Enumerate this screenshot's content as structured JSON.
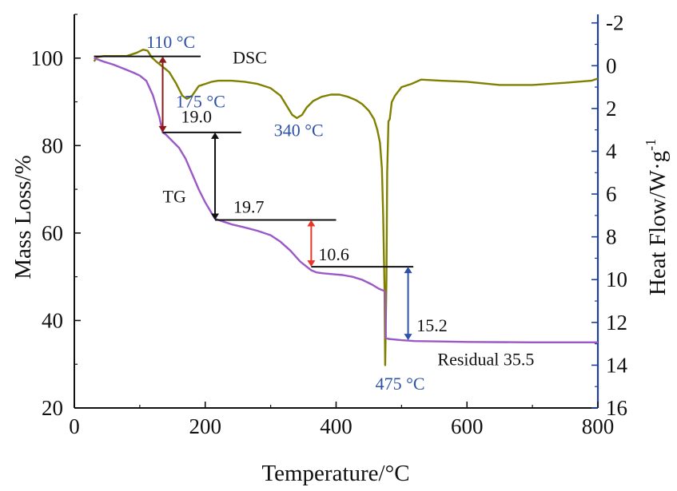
{
  "chart_data": {
    "type": "line",
    "xlabel": "Temperature/°C",
    "ylabel_left": "Mass Loss/%",
    "ylabel_right_main": "Heat Flow/W·g",
    "ylabel_right_sup": "-1",
    "xlim": [
      0,
      800
    ],
    "ylim_left": [
      20,
      110
    ],
    "ylim_right": [
      16,
      -2.4
    ],
    "x_ticks": [
      0,
      200,
      400,
      600,
      800
    ],
    "y_left_ticks": [
      20,
      40,
      60,
      80,
      100
    ],
    "y_right_ticks": [
      -2,
      0,
      2,
      4,
      6,
      8,
      10,
      12,
      14,
      16
    ],
    "colors": {
      "axis_right": "#1f3f9a",
      "dsc": "#808000",
      "tg": "#9b59c7",
      "annotation_blue": "#2e52a8",
      "arrow_dark_red": "#8b1a1a",
      "arrow_red": "#e8352a",
      "arrow_blue": "#2e52a8",
      "text": "#111111"
    },
    "series": [
      {
        "name": "DSC",
        "axis": "right",
        "x": [
          30,
          35,
          45,
          60,
          80,
          95,
          105,
          112,
          118,
          125,
          135,
          145,
          155,
          165,
          172,
          180,
          190,
          200,
          210,
          220,
          240,
          260,
          280,
          300,
          315,
          325,
          333,
          340,
          348,
          355,
          365,
          378,
          392,
          405,
          418,
          430,
          440,
          450,
          458,
          463,
          467,
          470,
          472,
          474,
          475,
          477,
          478,
          480,
          482,
          485,
          490,
          500,
          515,
          530,
          560,
          600,
          650,
          700,
          750,
          790,
          800
        ],
        "y": [
          -0.2,
          -0.4,
          -0.45,
          -0.45,
          -0.45,
          -0.6,
          -0.75,
          -0.7,
          -0.4,
          -0.2,
          0.05,
          0.3,
          0.8,
          1.4,
          1.55,
          1.4,
          0.95,
          0.85,
          0.75,
          0.7,
          0.7,
          0.75,
          0.85,
          1.05,
          1.4,
          1.9,
          2.3,
          2.45,
          2.3,
          1.95,
          1.65,
          1.45,
          1.35,
          1.35,
          1.45,
          1.6,
          1.8,
          2.1,
          2.5,
          3.0,
          3.6,
          4.8,
          7.0,
          10.5,
          14.0,
          10.0,
          5.0,
          2.6,
          2.5,
          1.7,
          1.4,
          1.0,
          0.85,
          0.65,
          0.7,
          0.75,
          0.9,
          0.9,
          0.8,
          0.7,
          0.6
        ]
      },
      {
        "name": "TG",
        "axis": "left",
        "x": [
          30,
          45,
          60,
          75,
          90,
          100,
          110,
          120,
          130,
          135,
          140,
          150,
          160,
          170,
          180,
          190,
          200,
          210,
          215,
          220,
          230,
          240,
          260,
          280,
          300,
          315,
          330,
          345,
          355,
          362,
          370,
          380,
          395,
          410,
          425,
          440,
          455,
          465,
          473,
          475,
          476,
          480,
          500,
          520,
          560,
          600,
          700,
          800
        ],
        "y": [
          100,
          99.2,
          98.5,
          97.6,
          96.7,
          96.0,
          94.8,
          91.5,
          86.5,
          83.0,
          82.5,
          81.0,
          79.5,
          77.0,
          73.5,
          70.0,
          67.0,
          64.5,
          63.3,
          63.0,
          62.5,
          62.0,
          61.3,
          60.5,
          59.5,
          58.0,
          56.0,
          53.5,
          52.3,
          51.5,
          51.0,
          50.8,
          50.6,
          50.4,
          50.0,
          49.3,
          48.2,
          47.3,
          46.8,
          46.5,
          36.0,
          35.8,
          35.5,
          35.3,
          35.2,
          35.1,
          35.0,
          35.0
        ]
      }
    ],
    "hlines": [
      {
        "x1": 30,
        "x2": 193,
        "y": 100.4
      },
      {
        "x1": 135,
        "x2": 255,
        "y": 83.0
      },
      {
        "x1": 215,
        "x2": 400,
        "y": 63.0
      },
      {
        "x1": 362,
        "x2": 518,
        "y": 52.3
      }
    ],
    "arrows": [
      {
        "x": 135,
        "y1": 100.4,
        "y2": 83.0,
        "color_key": "arrow_dark_red"
      },
      {
        "x": 215,
        "y1": 83.0,
        "y2": 63.0,
        "color_key": "text"
      },
      {
        "x": 362,
        "y1": 63.0,
        "y2": 52.3,
        "color_key": "arrow_red"
      },
      {
        "x": 510,
        "y1": 52.3,
        "y2": 35.5,
        "color_key": "arrow_blue"
      }
    ],
    "annotations": [
      {
        "text": "110 °C",
        "x": 110,
        "y": 102.3,
        "color_key": "annotation_blue",
        "anchor": "start"
      },
      {
        "text": "DSC",
        "x": 242,
        "y": 98.8,
        "color_key": "text",
        "anchor": "start"
      },
      {
        "text": "175 °C",
        "x": 155,
        "y": 88.7,
        "color_key": "annotation_blue",
        "anchor": "start"
      },
      {
        "text": "19.0",
        "x": 163,
        "y": 85.3,
        "color_key": "text",
        "anchor": "start"
      },
      {
        "text": "340 °C",
        "x": 305,
        "y": 82.2,
        "color_key": "annotation_blue",
        "anchor": "start"
      },
      {
        "text": "TG",
        "x": 135,
        "y": 67.0,
        "color_key": "text",
        "anchor": "start"
      },
      {
        "text": "19.7",
        "x": 243,
        "y": 64.6,
        "color_key": "text",
        "anchor": "start"
      },
      {
        "text": "10.6",
        "x": 373,
        "y": 53.8,
        "color_key": "text",
        "anchor": "start"
      },
      {
        "text": "15.2",
        "x": 523,
        "y": 37.5,
        "color_key": "text",
        "anchor": "start"
      },
      {
        "text": "Residual 35.5",
        "x": 555,
        "y": 29.8,
        "color_key": "text",
        "anchor": "start"
      },
      {
        "text": "475 °C",
        "x": 460,
        "y": 24.2,
        "color_key": "annotation_blue",
        "anchor": "start"
      }
    ]
  }
}
